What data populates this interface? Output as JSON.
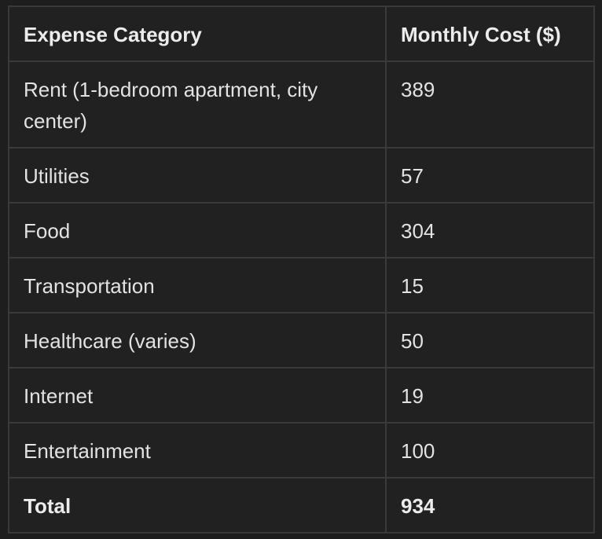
{
  "table": {
    "headers": [
      "Expense Category",
      "Monthly Cost ($)"
    ],
    "rows": [
      {
        "category": "Rent (1-bedroom apartment, city center)",
        "cost": "389"
      },
      {
        "category": "Utilities",
        "cost": "57"
      },
      {
        "category": "Food",
        "cost": "304"
      },
      {
        "category": "Transportation",
        "cost": "15"
      },
      {
        "category": "Healthcare (varies)",
        "cost": "50"
      },
      {
        "category": "Internet",
        "cost": "19"
      },
      {
        "category": "Entertainment",
        "cost": "100"
      }
    ],
    "total": {
      "label": "Total",
      "cost": "934"
    }
  },
  "colors": {
    "background": "#1e1e1e",
    "cell_background": "#212121",
    "border": "#3a3a3a",
    "text": "#e2e2e2"
  }
}
